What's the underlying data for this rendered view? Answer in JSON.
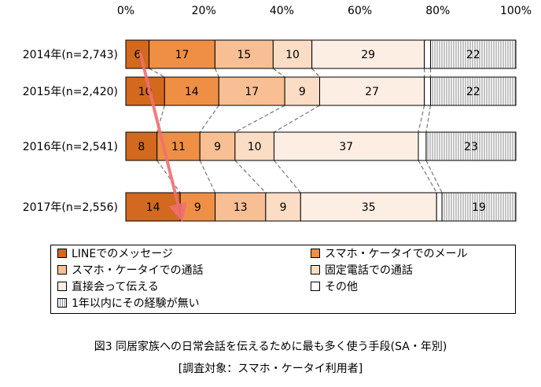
{
  "chart_data": {
    "type": "bar",
    "orientation": "horizontal",
    "stacked": true,
    "percent_axis": true,
    "x_ticks": [
      "0%",
      "20%",
      "40%",
      "60%",
      "80%",
      "100%"
    ],
    "xlim": [
      0,
      100
    ],
    "categories": [
      "2014年(n=2,743)",
      "2015年(n=2,420)",
      "2016年(n=2,541)",
      "2017年(n=2,556)"
    ],
    "series": [
      {
        "name": "LINEでのメッセージ",
        "color": "#d2691e",
        "values": [
          6,
          10,
          8,
          14
        ]
      },
      {
        "name": "スマホ・ケータイでのメール",
        "color": "#ef8f45",
        "values": [
          17,
          14,
          11,
          9
        ]
      },
      {
        "name": "スマホ・ケータイでの通話",
        "color": "#f8bf95",
        "values": [
          15,
          17,
          9,
          13
        ]
      },
      {
        "name": "固定電話での通話",
        "color": "#fbdcc4",
        "values": [
          10,
          9,
          10,
          9
        ]
      },
      {
        "name": "直接会って伝える",
        "color": "#fdeee3",
        "values": [
          29,
          27,
          37,
          35
        ]
      },
      {
        "name": "その他",
        "color": "#ffffff",
        "values": [
          1.6,
          1.6,
          2.0,
          1.4
        ]
      },
      {
        "name": "1年以内にその経験が無い",
        "color": "#e4e4e4",
        "pattern": "vertical-lines",
        "values": [
          22,
          22,
          23,
          19
        ]
      }
    ],
    "labels": [
      [
        "6",
        "17",
        "15",
        "10",
        "29",
        "",
        "22"
      ],
      [
        "10",
        "14",
        "17",
        "9",
        "27",
        "",
        "22"
      ],
      [
        "8",
        "11",
        "9",
        "10",
        "37",
        "",
        "23"
      ],
      [
        "14",
        "9",
        "13",
        "9",
        "35",
        "",
        "19"
      ]
    ],
    "annotation": {
      "type": "arrow",
      "color": "#f07070",
      "from": "2014年 LINEでのメッセージ",
      "to": "2017年 LINEでのメッセージ"
    },
    "connector_lines": "dashed",
    "legend_position": "bottom"
  },
  "legend": [
    {
      "label": "LINEでのメッセージ",
      "color": "#d2691e"
    },
    {
      "label": "スマホ・ケータイでのメール",
      "color": "#ef8f45"
    },
    {
      "label": "スマホ・ケータイでの通話",
      "color": "#f8bf95"
    },
    {
      "label": "固定電話での通話",
      "color": "#fbdcc4"
    },
    {
      "label": "直接会って伝える",
      "color": "#fdeee3"
    },
    {
      "label": "その他",
      "color": "#ffffff"
    },
    {
      "label": "1年以内にその経験が無い",
      "color": "#e4e4e4",
      "pattern": "vertical-lines"
    }
  ],
  "caption": {
    "title": "図3 同居家族への日常会話を伝えるために最も多く使う手段(SA・年別)",
    "subtitle": "[調査対象：スマホ・ケータイ利用者]"
  }
}
